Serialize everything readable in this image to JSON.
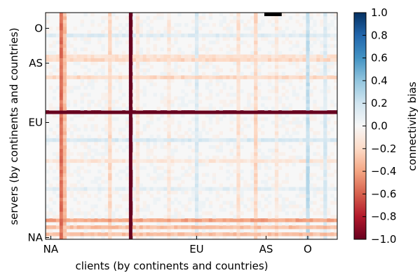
{
  "chart_data": {
    "type": "heatmap",
    "xlabel": "clients (by continents and countries)",
    "ylabel": "servers (by continents and countries)",
    "x_ticks": [
      "NA",
      "EU",
      "AS",
      "O"
    ],
    "y_ticks": [
      "NA",
      "EU",
      "AS",
      "O"
    ],
    "colorbar": {
      "label": "connectivity bias",
      "ticks": [
        "1.0",
        "0.8",
        "0.6",
        "0.4",
        "0.2",
        "0.0",
        "−0.2",
        "−0.4",
        "−0.6",
        "−0.8",
        "−1.0"
      ],
      "range": [
        -1.0,
        1.0
      ],
      "colormap": "RdBu"
    },
    "matrix": {
      "clients": 84,
      "servers": 65,
      "x_tick_positions": [
        1,
        43,
        63,
        75
      ],
      "y_tick_positions": [
        0,
        33,
        50,
        60
      ],
      "client_column_bias": [
        {
          "client": 4,
          "value": -0.55
        },
        {
          "client": 5,
          "value": -0.3
        },
        {
          "client": 18,
          "value": -0.2
        },
        {
          "client": 24,
          "value": -1.0
        },
        {
          "client": 26,
          "value": -0.12
        },
        {
          "client": 35,
          "value": -0.1
        },
        {
          "client": 43,
          "value": 0.15
        },
        {
          "client": 55,
          "value": -0.15
        },
        {
          "client": 60,
          "value": -0.2
        },
        {
          "client": 66,
          "value": -0.1
        },
        {
          "client": 75,
          "value": 0.25
        },
        {
          "client": 80,
          "value": 0.15
        }
      ],
      "server_row_bias": [
        {
          "server": 1,
          "value": -0.3
        },
        {
          "server": 3,
          "value": -0.3
        },
        {
          "server": 5,
          "value": -0.4
        },
        {
          "server": 14,
          "value": 0.1
        },
        {
          "server": 22,
          "value": -0.12
        },
        {
          "server": 28,
          "value": 0.15
        },
        {
          "server": 36,
          "value": -1.0
        },
        {
          "server": 46,
          "value": -0.2
        },
        {
          "server": 51,
          "value": -0.2
        },
        {
          "server": 52,
          "value": -0.15
        },
        {
          "server": 58,
          "value": 0.12
        }
      ],
      "saturated_block": {
        "client_start": 63,
        "client_end": 68,
        "server": 64,
        "value": 1.0
      }
    }
  }
}
